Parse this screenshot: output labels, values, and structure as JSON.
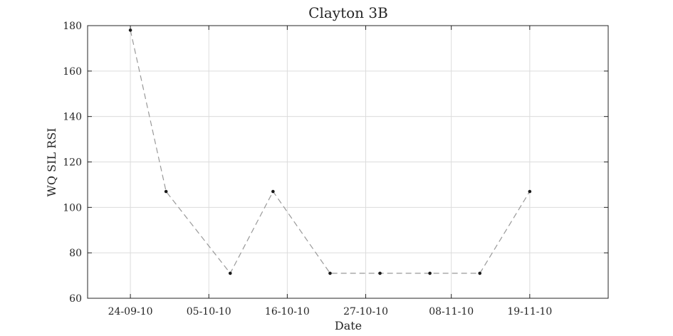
{
  "chart_data": {
    "type": "line",
    "title": "Clayton 3B",
    "xlabel": "Date",
    "ylabel": "WQ SIL RSI",
    "x_type": "date",
    "xlim": [
      "2010-09-18",
      "2010-11-30"
    ],
    "ylim": [
      60,
      180
    ],
    "x_ticks": [
      {
        "date": "2010-09-24",
        "label": "24-09-10"
      },
      {
        "date": "2010-10-05",
        "label": "05-10-10"
      },
      {
        "date": "2010-10-16",
        "label": "16-10-10"
      },
      {
        "date": "2010-10-27",
        "label": "27-10-10"
      },
      {
        "date": "2010-11-08",
        "label": "08-11-10"
      },
      {
        "date": "2010-11-19",
        "label": "19-11-10"
      }
    ],
    "y_ticks": [
      60,
      80,
      100,
      120,
      140,
      160,
      180
    ],
    "grid": true,
    "series": [
      {
        "x": [
          "2010-09-24",
          "2010-09-29",
          "2010-10-08",
          "2010-10-14",
          "2010-10-22",
          "2010-10-29",
          "2010-11-05",
          "2010-11-12",
          "2010-11-19"
        ],
        "values": [
          178,
          107,
          71,
          107,
          71,
          71,
          71,
          71,
          107
        ],
        "line_style": "dashed",
        "line_color": "#999999",
        "marker": "dot",
        "marker_color": "#1a1a1a"
      }
    ]
  }
}
